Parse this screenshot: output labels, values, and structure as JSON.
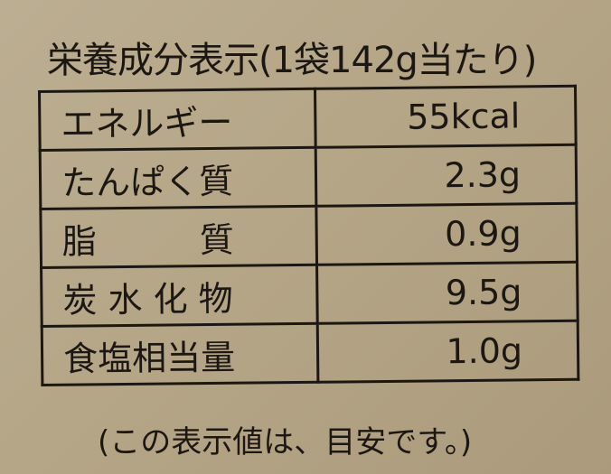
{
  "title": "栄養成分表示(1袋142g当たり)",
  "rows": [
    {
      "label": "エネルギー",
      "value": "55kcal"
    },
    {
      "label": "たんぱく質",
      "value": "2.3g"
    },
    {
      "label": "脂　　　質",
      "value": "0.9g"
    },
    {
      "label": "炭 水 化 物",
      "value": "9.5g"
    },
    {
      "label": "食塩相当量",
      "value": "1.0g"
    }
  ],
  "footer": "(この表示値は、目安です。)"
}
